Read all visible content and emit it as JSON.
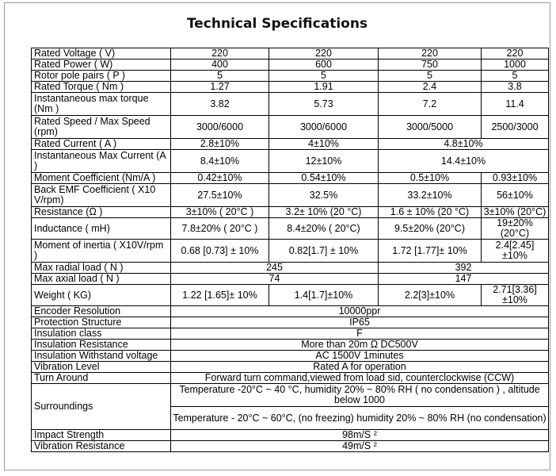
{
  "title": "Technical Specifications",
  "rows": {
    "rated_voltage": {
      "label": "Rated Voltage ( V)",
      "v": [
        "220",
        "220",
        "220",
        "220"
      ]
    },
    "rated_power": {
      "label": "Rated Power ( W)",
      "v": [
        "400",
        "600",
        "750",
        "1000"
      ]
    },
    "rotor_pole_pairs": {
      "label": "Rotor pole pairs ( P )",
      "v": [
        "5",
        "5",
        "5",
        "5"
      ]
    },
    "rated_torque": {
      "label": "Rated Torque ( Nm )",
      "v": [
        "1.27",
        "1.91",
        "2.4",
        "3.8"
      ]
    },
    "inst_max_torque": {
      "label": "Instantaneous max torque (Nm )",
      "v": [
        "3.82",
        "5.73",
        "7.2",
        "11.4"
      ]
    },
    "rated_speed": {
      "label": "Rated Speed / Max Speed (rpm)",
      "v": [
        "3000/6000",
        "3000/6000",
        "3000/5000",
        "2500/3000"
      ]
    },
    "rated_current": {
      "label": "Rated Current ( A )",
      "v": [
        "2.8±10%",
        "4±10%",
        "4.8±10%"
      ]
    },
    "inst_max_current": {
      "label": "Instantaneous Max Current (A )",
      "v": [
        "8.4±10%",
        "12±10%",
        "14.4±10%"
      ]
    },
    "moment_coeff": {
      "label": "Moment Coefficient (Nm/A )",
      "v": [
        "0.42±10%",
        "0.54±10%",
        "0.5±10%",
        "0.93±10%"
      ]
    },
    "back_emf": {
      "label": "Back EMF Coefficient ( X10 V/rpm)",
      "v": [
        "27.5±10%",
        "32.5%",
        "33.2±10%",
        "56±10%"
      ]
    },
    "resistance": {
      "label": "Resistance (Ω )",
      "v": [
        "3±10% ( 20°C )",
        "3.2± 10% (20 °C)",
        "1.6 ± 10% (20 °C)",
        "3±10% (20°C)"
      ]
    },
    "inductance": {
      "label": "Inductance ( mH)",
      "v": [
        "7.8±20% ( 20°C )",
        "8.4±20% ( 20°C)",
        "9.5±20% (20°C)",
        "19±20% (20°C)"
      ]
    },
    "moment_inertia": {
      "label": "Moment of inertia ( X10V/rpm )",
      "v": [
        "0.68 [0.73] ± 10%",
        "0.82[1.7] ± 10%",
        "1.72 [1.77]± 10%",
        "2.4[2.45]±10%"
      ]
    },
    "max_radial": {
      "label": "Max radial load ( N )",
      "v": [
        "245",
        "392"
      ]
    },
    "max_axial": {
      "label": "Max axial load ( N )",
      "v": [
        "74",
        "147"
      ]
    },
    "weight": {
      "label": "Weight ( KG)",
      "v": [
        "1.22 [1.65]± 10%",
        "1.4[1.7]±10%",
        "2.2[3]±10%",
        "2.71[3.36]±10%"
      ]
    },
    "encoder": {
      "label": "Encoder Resolution",
      "v": [
        "10000ppr"
      ]
    },
    "protection": {
      "label": "Protection Structure",
      "v": [
        "IP65"
      ]
    },
    "insulation_class": {
      "label": "Insulation class",
      "v": [
        "F"
      ]
    },
    "insulation_resistance": {
      "label": "Insulation Resistance",
      "v": [
        "More than 20m Ω DC500V"
      ]
    },
    "withstand_voltage": {
      "label": "Insulation Withstand voltage",
      "v": [
        "AC 1500V 1minutes"
      ]
    },
    "vibration_level": {
      "label": "Vibration Level",
      "v": [
        "Rated A for operation"
      ]
    },
    "turn_around": {
      "label": "Turn Around",
      "v": [
        "Forward turn command,viewed from load sid, counterclockwise (CCW)"
      ]
    },
    "surroundings": {
      "label": "Surroundings",
      "v": [
        "Temperature -20°C ~ 40 °C, humidity 20% ~ 80% RH ( no condensation ) , altitude below 1000",
        "Temperature - 20°C ~ 60°C, (no freezing) humidity 20% ~ 80% RH (no condensation)"
      ]
    },
    "impact": {
      "label": "Impact Strength",
      "v": [
        "98m/S ²"
      ]
    },
    "vibration_resistance": {
      "label": "Vibration Resistance",
      "v": [
        "49m/S ²"
      ]
    }
  }
}
